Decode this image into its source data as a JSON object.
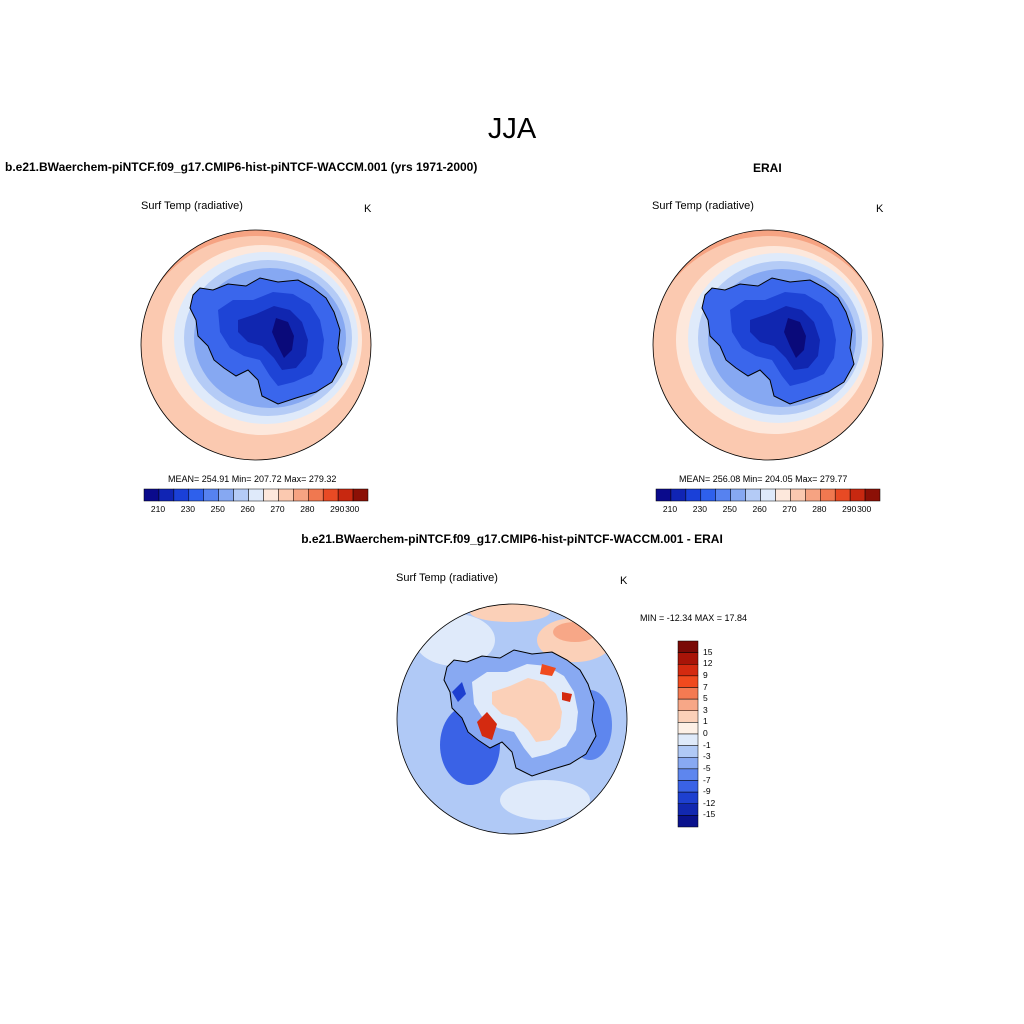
{
  "figure_title": "JJA",
  "panels": [
    {
      "title": "b.e21.BWaerchem-piNTCF.f09_g17.CMIP6-hist-piNTCF-WACCM.001 (yrs 1971-2000)",
      "variable": "Surf Temp (radiative)",
      "units": "K",
      "stats": "MEAN= 254.91  Min= 207.72  Max= 279.32"
    },
    {
      "title": "ERAI",
      "variable": "Surf Temp (radiative)",
      "units": "K",
      "stats": "MEAN= 256.08  Min= 204.05  Max= 279.77"
    },
    {
      "title": "b.e21.BWaerchem-piNTCF.f09_g17.CMIP6-hist-piNTCF-WACCM.001 - ERAI",
      "variable": "Surf Temp (radiative)",
      "units": "K",
      "stats": "MIN = -12.34 MAX =  17.84"
    }
  ],
  "colorbars": {
    "absolute": {
      "ticks": [
        "210",
        "230",
        "250",
        "260",
        "270",
        "280",
        "290",
        "300"
      ],
      "colors": [
        "#0a0a8c",
        "#1024b4",
        "#1a40d8",
        "#2e60ec",
        "#5682f0",
        "#86a8f2",
        "#b4cbf6",
        "#dfeafa",
        "#fde8dc",
        "#fbc9b0",
        "#f6a382",
        "#f07850",
        "#e84a24",
        "#c82810",
        "#8c1006"
      ]
    },
    "difference": {
      "ticks": [
        "15",
        "12",
        "9",
        "7",
        "5",
        "3",
        "1",
        "0",
        "-1",
        "-3",
        "-5",
        "-7",
        "-9",
        "-12",
        "-15"
      ],
      "colors": [
        "#7a0a06",
        "#a81408",
        "#d42a10",
        "#f04a1e",
        "#f47a52",
        "#f7a787",
        "#fbd0b8",
        "#fdf0e6",
        "#dfeafa",
        "#b0c9f6",
        "#88a9f2",
        "#5e86ee",
        "#3a62e6",
        "#1e40d0",
        "#1228b0",
        "#0a128c"
      ]
    }
  },
  "colors": {
    "land_outline": "#000000",
    "map_border": "#000000"
  }
}
